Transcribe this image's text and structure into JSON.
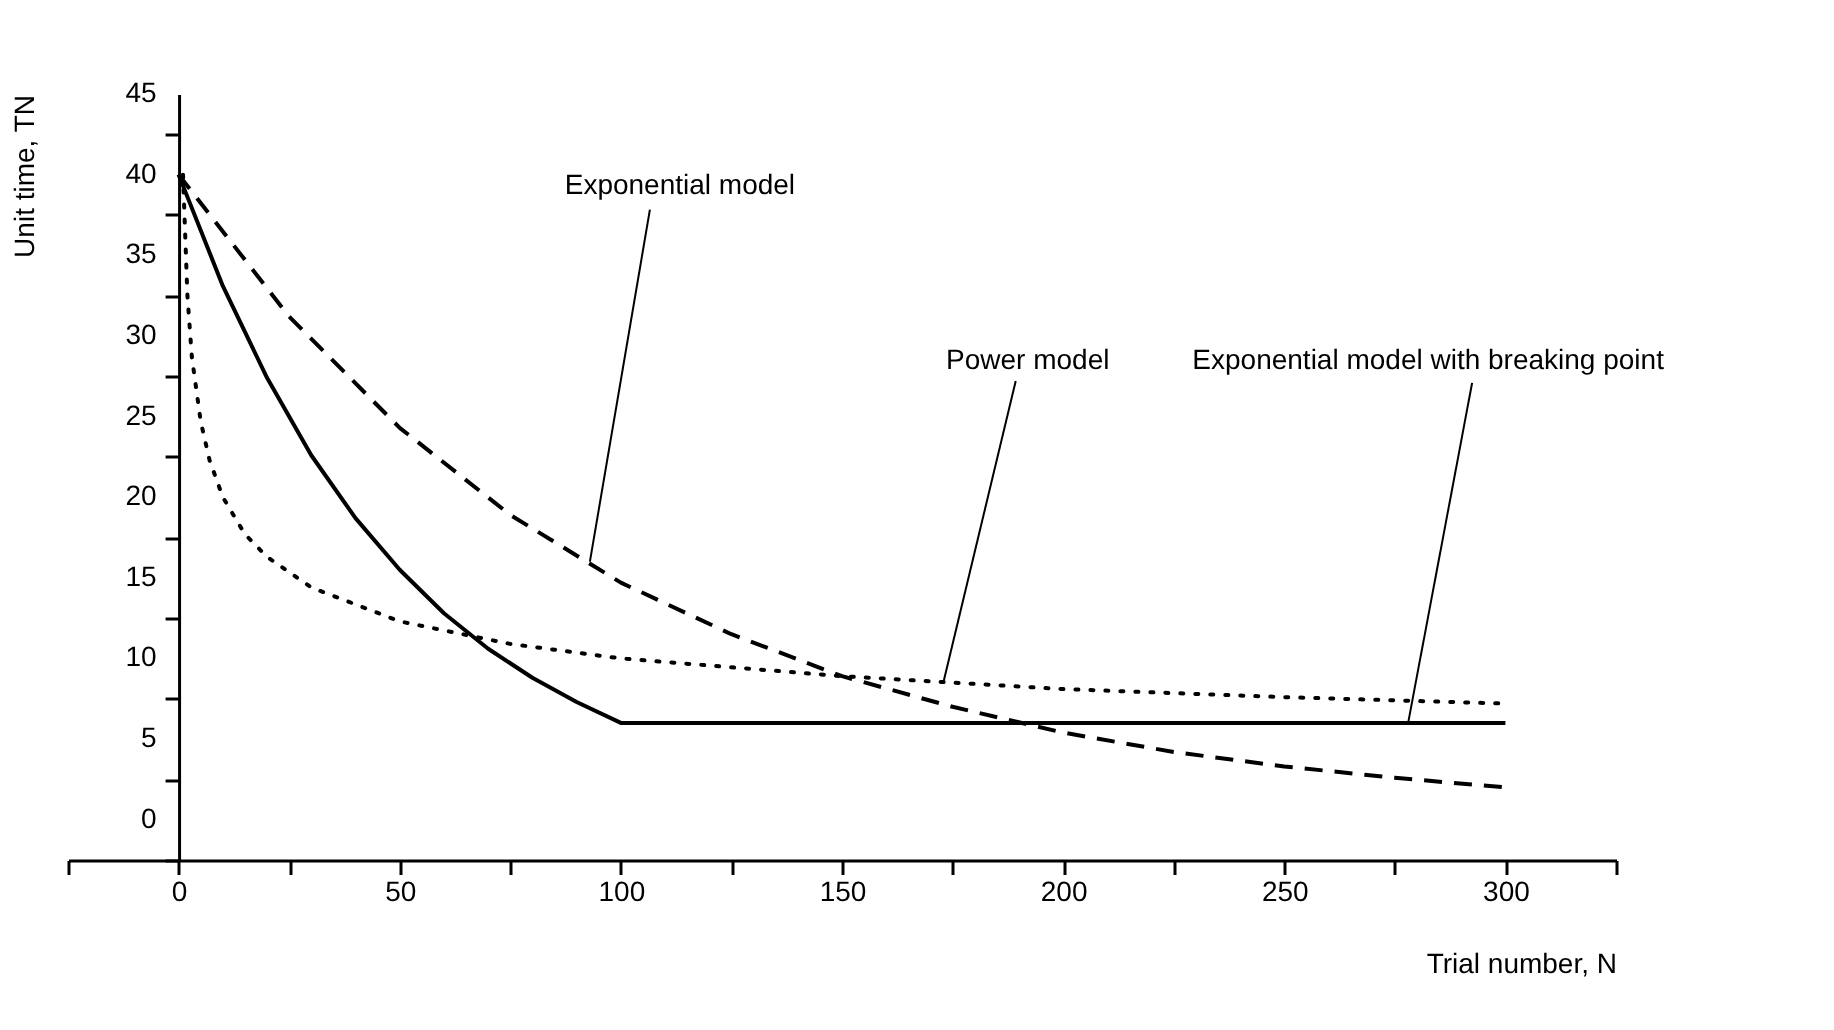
{
  "chart_data": {
    "type": "line",
    "xlabel": "Trial number, N",
    "ylabel": "Unit time, TN",
    "xlim": [
      -25,
      325
    ],
    "xticks": [
      {
        "value": -25,
        "label": null
      },
      0,
      {
        "value": 25,
        "label": null
      },
      50,
      {
        "value": 75,
        "label": null
      },
      100,
      {
        "value": 125,
        "label": null
      },
      150,
      {
        "value": 175,
        "label": null
      },
      200,
      {
        "value": 225,
        "label": null
      },
      250,
      {
        "value": 275,
        "label": null
      },
      300,
      {
        "value": 325,
        "label": null
      }
    ],
    "ylim": [
      -2.5,
      45
    ],
    "yticks": [
      {
        "value": -2.5,
        "label": null
      },
      0,
      {
        "value": 2.5,
        "label": null
      },
      5,
      {
        "value": 7.5,
        "label": null
      },
      10,
      {
        "value": 12.5,
        "label": null
      },
      15,
      {
        "value": 17.5,
        "label": null
      },
      20,
      {
        "value": 22.5,
        "label": null
      },
      25,
      {
        "value": 27.5,
        "label": null
      },
      30,
      {
        "value": 32.5,
        "label": null
      },
      35,
      {
        "value": 37.5,
        "label": null
      },
      40,
      {
        "value": 42.5,
        "label": null
      },
      45
    ],
    "marker": "none",
    "series": [
      {
        "color": "#000000",
        "line_style": "solid",
        "x": [
          0,
          10,
          20,
          30,
          40,
          50,
          60,
          70,
          80,
          90,
          100,
          300
        ],
        "values": [
          40,
          33.1,
          27.4,
          22.6,
          18.7,
          15.5,
          12.8,
          10.6,
          8.8,
          7.3,
          6,
          6
        ]
      },
      {
        "color": "#000000",
        "line_style": "dashed",
        "x": [
          0,
          25,
          50,
          75,
          100,
          125,
          150,
          175,
          200,
          225,
          250,
          275,
          300
        ],
        "values": [
          40,
          31.2,
          24.3,
          18.9,
          14.7,
          11.5,
          8.9,
          7.0,
          5.4,
          4.2,
          3.3,
          2.6,
          2.0
        ]
      },
      {
        "color": "#000000",
        "line_style": "dotted",
        "x": [
          1,
          2,
          3,
          5,
          7,
          10,
          15,
          20,
          30,
          50,
          75,
          100,
          150,
          200,
          250,
          300
        ],
        "values": [
          40,
          32.5,
          28.7,
          24.7,
          22.3,
          20,
          17.7,
          16.3,
          14.4,
          12.3,
          10.9,
          10,
          8.9,
          8.1,
          7.6,
          7.2
        ]
      }
    ],
    "annotations": [
      {
        "text": "Exponential model",
        "x": 93,
        "y": 16
      },
      {
        "text": "Power model",
        "x": 173,
        "y": 8.6
      },
      {
        "text": "Exponential model with breaking point",
        "x": 278,
        "y": 6
      }
    ]
  }
}
